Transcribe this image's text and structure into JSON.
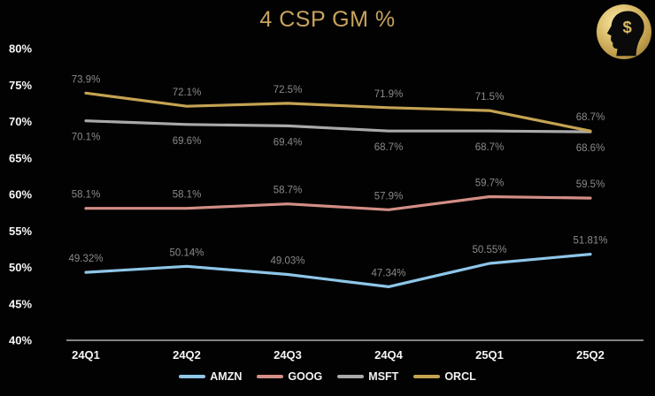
{
  "title": "4 CSP GM %",
  "logo": {
    "symbol": "$",
    "description": "gold coin with head silhouette"
  },
  "chart_data": {
    "type": "line",
    "title": "4 CSP GM %",
    "categories": [
      "24Q1",
      "24Q2",
      "24Q3",
      "24Q4",
      "25Q1",
      "25Q2"
    ],
    "series": [
      {
        "name": "AMZN",
        "color": "#8ec6e8",
        "values": [
          49.32,
          50.14,
          49.03,
          47.34,
          50.55,
          51.81
        ],
        "labels": [
          "49.32%",
          "50.14%",
          "49.03%",
          "47.34%",
          "50.55%",
          "51.81%"
        ],
        "label_position": "above"
      },
      {
        "name": "GOOG",
        "color": "#d28e86",
        "values": [
          58.1,
          58.1,
          58.7,
          57.9,
          59.7,
          59.5
        ],
        "labels": [
          "58.1%",
          "58.1%",
          "58.7%",
          "57.9%",
          "59.7%",
          "59.5%"
        ],
        "label_position": "above"
      },
      {
        "name": "MSFT",
        "color": "#a9a9a9",
        "values": [
          70.1,
          69.6,
          69.4,
          68.7,
          68.7,
          68.6
        ],
        "labels": [
          "70.1%",
          "69.6%",
          "69.4%",
          "68.7%",
          "68.7%",
          "68.6%"
        ],
        "label_position": "below"
      },
      {
        "name": "ORCL",
        "color": "#c5a353",
        "values": [
          73.9,
          72.1,
          72.5,
          71.9,
          71.5,
          68.7
        ],
        "labels": [
          "73.9%",
          "72.1%",
          "72.5%",
          "71.9%",
          "71.5%",
          "68.7%"
        ],
        "label_position": "above"
      }
    ],
    "y_ticks": [
      {
        "label": "80%",
        "value": 80
      },
      {
        "label": "75%",
        "value": 75
      },
      {
        "label": "70%",
        "value": 70
      },
      {
        "label": "65%",
        "value": 65
      },
      {
        "label": "60%",
        "value": 60
      },
      {
        "label": "55%",
        "value": 55
      },
      {
        "label": "50%",
        "value": 50
      },
      {
        "label": "45%",
        "value": 45
      },
      {
        "label": "40%",
        "value": 40
      }
    ],
    "ylim": [
      40,
      80
    ],
    "grid": false,
    "legend_position": "bottom",
    "colors": {
      "background": "#020202",
      "title": "#c7a35e",
      "axis_line": "#cfcfcf",
      "tick_text": "#f5f5f5",
      "data_label": "#8a8a8a"
    }
  }
}
